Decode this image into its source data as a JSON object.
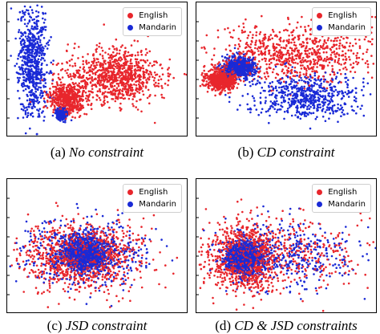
{
  "colors": {
    "english": "#e8262c",
    "mandarin": "#1a2ad6"
  },
  "legend": {
    "english": "English",
    "mandarin": "Mandarin"
  },
  "captions": [
    {
      "letter": "(a)",
      "text": "No constraint"
    },
    {
      "letter": "(b)",
      "text": "CD constraint"
    },
    {
      "letter": "(c)",
      "text": "JSD constraint"
    },
    {
      "letter": "(d)",
      "text": "CD & JSD constraints"
    }
  ],
  "chart_data": [
    {
      "type": "scatter",
      "title": "",
      "xlabel": "",
      "ylabel": "",
      "grid": false,
      "legend_placement": "top-right",
      "series": [
        {
          "name": "English",
          "clusters": [
            {
              "cx": 0.33,
              "cy": 0.71,
              "sx": 0.05,
              "sy": 0.06,
              "n": 500
            },
            {
              "cx": 0.6,
              "cy": 0.55,
              "sx": 0.13,
              "sy": 0.1,
              "n": 900
            }
          ]
        },
        {
          "name": "Mandarin",
          "clusters": [
            {
              "cx": 0.14,
              "cy": 0.45,
              "sx": 0.04,
              "sy": 0.22,
              "n": 700
            },
            {
              "cx": 0.3,
              "cy": 0.83,
              "sx": 0.015,
              "sy": 0.02,
              "n": 300
            }
          ]
        }
      ]
    },
    {
      "type": "scatter",
      "title": "",
      "xlabel": "",
      "ylabel": "",
      "grid": false,
      "legend_placement": "top-right",
      "series": [
        {
          "name": "English",
          "clusters": [
            {
              "cx": 0.14,
              "cy": 0.57,
              "sx": 0.04,
              "sy": 0.04,
              "n": 700
            },
            {
              "cx": 0.55,
              "cy": 0.38,
              "sx": 0.22,
              "sy": 0.1,
              "n": 800
            }
          ]
        },
        {
          "name": "Mandarin",
          "clusters": [
            {
              "cx": 0.24,
              "cy": 0.48,
              "sx": 0.04,
              "sy": 0.04,
              "n": 700
            },
            {
              "cx": 0.6,
              "cy": 0.7,
              "sx": 0.15,
              "sy": 0.08,
              "n": 600
            }
          ]
        }
      ]
    },
    {
      "type": "scatter",
      "title": "",
      "xlabel": "",
      "ylabel": "",
      "grid": false,
      "legend_placement": "top-right",
      "series": [
        {
          "name": "English",
          "clusters": [
            {
              "cx": 0.42,
              "cy": 0.57,
              "sx": 0.16,
              "sy": 0.12,
              "n": 1100
            }
          ]
        },
        {
          "name": "Mandarin",
          "clusters": [
            {
              "cx": 0.43,
              "cy": 0.55,
              "sx": 0.06,
              "sy": 0.06,
              "n": 900
            },
            {
              "cx": 0.44,
              "cy": 0.55,
              "sx": 0.17,
              "sy": 0.12,
              "n": 500
            }
          ]
        }
      ]
    },
    {
      "type": "scatter",
      "title": "",
      "xlabel": "",
      "ylabel": "",
      "grid": false,
      "legend_placement": "top-right",
      "series": [
        {
          "name": "English",
          "clusters": [
            {
              "cx": 0.26,
              "cy": 0.58,
              "sx": 0.1,
              "sy": 0.12,
              "n": 1000
            },
            {
              "cx": 0.55,
              "cy": 0.55,
              "sx": 0.22,
              "sy": 0.14,
              "n": 300
            }
          ]
        },
        {
          "name": "Mandarin",
          "clusters": [
            {
              "cx": 0.26,
              "cy": 0.58,
              "sx": 0.05,
              "sy": 0.06,
              "n": 900
            },
            {
              "cx": 0.5,
              "cy": 0.58,
              "sx": 0.2,
              "sy": 0.12,
              "n": 400
            }
          ]
        }
      ]
    }
  ]
}
